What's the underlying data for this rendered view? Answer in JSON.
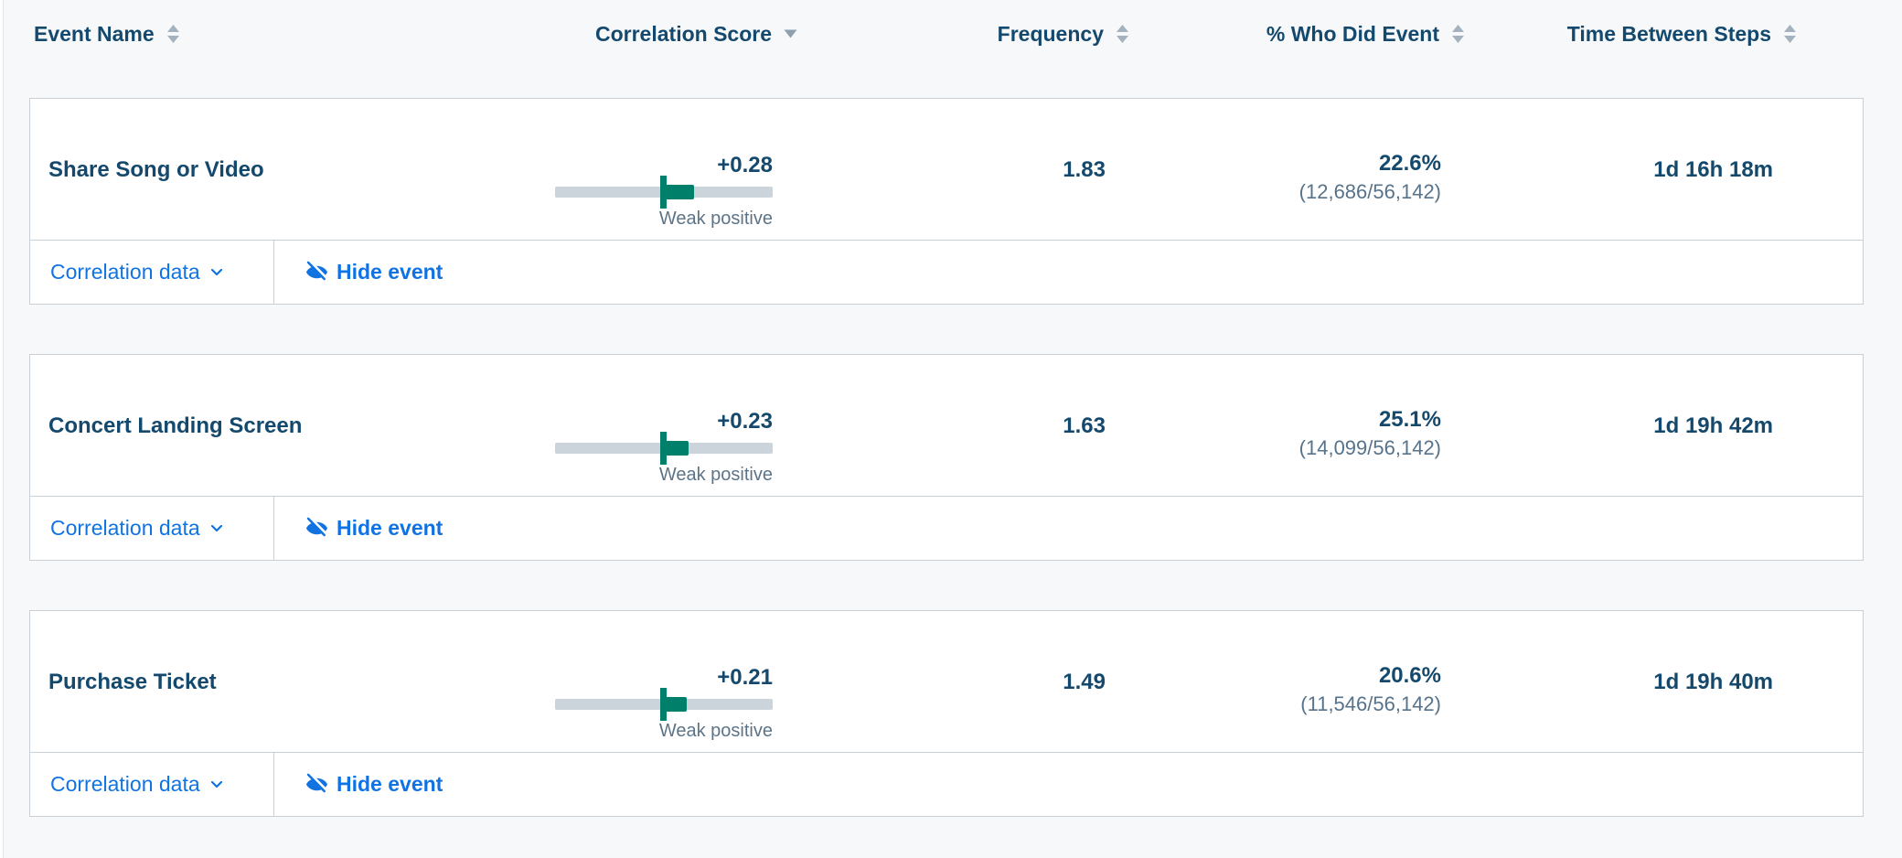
{
  "theme": {
    "page_background": "#f7f8f9",
    "card_background": "#ffffff",
    "card_border": "#c8cfd6",
    "primary_text": "#14496d",
    "secondary_text": "#5d7488",
    "link_blue": "#1173e2",
    "bar_teal": "#00806b",
    "bar_track": "#cbd3db",
    "sort_icon_gray": "#a4b1be"
  },
  "header": {
    "columns": [
      {
        "label": "Event Name",
        "sort": "both"
      },
      {
        "label": "Correlation Score",
        "sort": "desc"
      },
      {
        "label": "Frequency",
        "sort": "both"
      },
      {
        "label": "% Who Did Event",
        "sort": "both"
      },
      {
        "label": "Time Between Steps",
        "sort": "both"
      }
    ]
  },
  "rows": [
    {
      "event_name": "Share Song or Video",
      "correlation_score": "+0.28",
      "correlation_value": 0.28,
      "correlation_label": "Weak positive",
      "frequency": "1.83",
      "pct_who_did": "22.6%",
      "pct_detail": "(12,686/56,142)",
      "time_between": "1d 16h 18m"
    },
    {
      "event_name": "Concert Landing Screen",
      "correlation_score": "+0.23",
      "correlation_value": 0.23,
      "correlation_label": "Weak positive",
      "frequency": "1.63",
      "pct_who_did": "25.1%",
      "pct_detail": "(14,099/56,142)",
      "time_between": "1d 19h 42m"
    },
    {
      "event_name": "Purchase Ticket",
      "correlation_score": "+0.21",
      "correlation_value": 0.21,
      "correlation_label": "Weak positive",
      "frequency": "1.49",
      "pct_who_did": "20.6%",
      "pct_detail": "(11,546/56,142)",
      "time_between": "1d 19h 40m"
    }
  ],
  "actions": {
    "correlation_data_label": "Correlation data",
    "hide_event_label": "Hide event"
  }
}
